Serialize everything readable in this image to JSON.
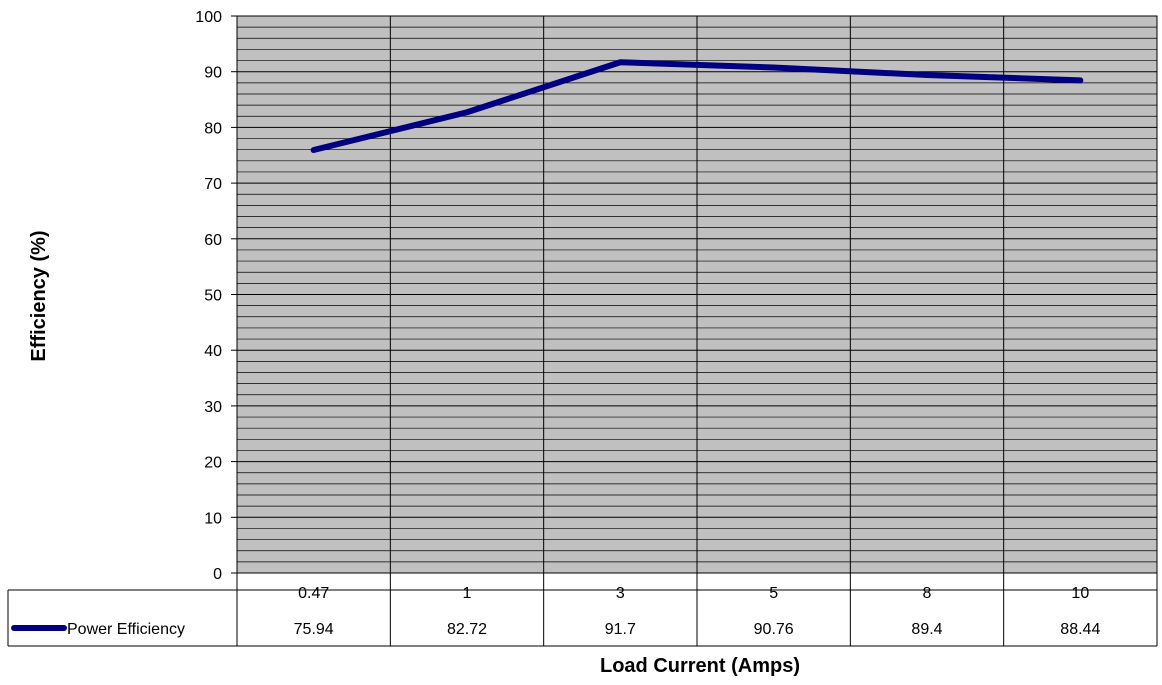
{
  "chart_data": {
    "type": "line",
    "title": "",
    "xlabel": "Load Current (Amps)",
    "ylabel": "Efficiency (%)",
    "ylim": [
      0,
      100
    ],
    "y_major_step": 10,
    "y_minor_step": 2,
    "grid": true,
    "legend": "data-table-left",
    "categories": [
      "0.47",
      "1",
      "3",
      "5",
      "8",
      "10"
    ],
    "series": [
      {
        "name": "Power Efficiency",
        "values": [
          75.94,
          82.72,
          91.7,
          90.76,
          89.4,
          88.44
        ],
        "value_labels": [
          "75.94",
          "82.72",
          "91.7",
          "90.76",
          "89.4",
          "88.44"
        ],
        "color": "#000080"
      }
    ],
    "colors": {
      "plot_background": "#c0c0c0",
      "gridline": "#000000"
    }
  }
}
